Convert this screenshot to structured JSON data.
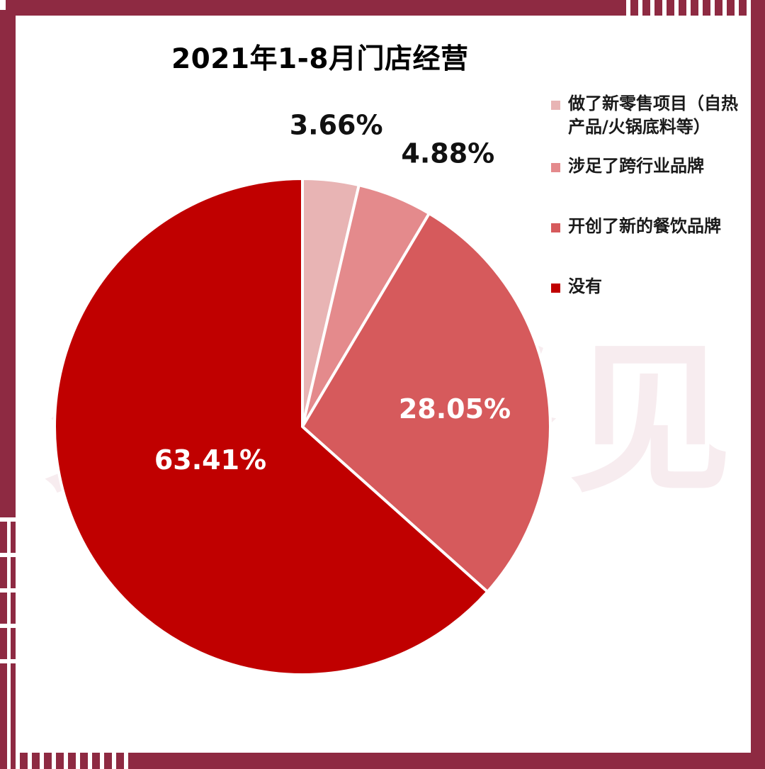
{
  "chart_data": {
    "type": "pie",
    "title": "2021年1-8月门店经营",
    "categories": [
      "做了新零售项目（自热产品/火锅底料等）",
      "涉足了跨行业品牌",
      "开创了新的餐饮品牌",
      "没有"
    ],
    "values": [
      3.66,
      4.88,
      28.05,
      63.41
    ],
    "data_labels": [
      "3.66%",
      "4.88%",
      "28.05%",
      "63.41%"
    ],
    "colors": [
      "#e8b4b4",
      "#e48a8c",
      "#d65a5c",
      "#c00000"
    ],
    "legend_position": "right"
  },
  "watermark_text": "火锅餐见"
}
